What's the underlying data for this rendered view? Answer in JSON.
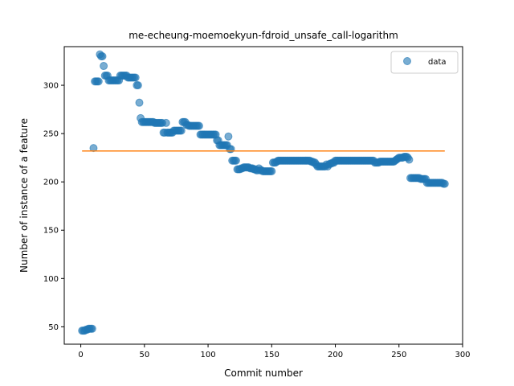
{
  "chart_data": {
    "type": "scatter",
    "title": "me-echeung-moemoekyun-fdroid_unsafe_call-logarithm",
    "xlabel": "Commit number",
    "ylabel": "Number of instance of a feature",
    "xlim": [
      -13,
      300
    ],
    "ylim": [
      32,
      340
    ],
    "xticks": [
      0,
      50,
      100,
      150,
      200,
      250,
      300
    ],
    "yticks": [
      50,
      100,
      150,
      200,
      250,
      300
    ],
    "grid": false,
    "legend_position": "top-right",
    "series": [
      {
        "name": "data",
        "kind": "scatter",
        "color": "#1f77b4",
        "opacity": 0.6,
        "points": [
          [
            1,
            46
          ],
          [
            2,
            46
          ],
          [
            3,
            46
          ],
          [
            4,
            47
          ],
          [
            5,
            47
          ],
          [
            6,
            48
          ],
          [
            7,
            48
          ],
          [
            8,
            48
          ],
          [
            9,
            48
          ],
          [
            10,
            235
          ],
          [
            11,
            304
          ],
          [
            12,
            304
          ],
          [
            13,
            304
          ],
          [
            14,
            304
          ],
          [
            15,
            332
          ],
          [
            16,
            330
          ],
          [
            17,
            330
          ],
          [
            18,
            320
          ],
          [
            19,
            310
          ],
          [
            20,
            310
          ],
          [
            21,
            310
          ],
          [
            22,
            305
          ],
          [
            23,
            305
          ],
          [
            24,
            305
          ],
          [
            25,
            305
          ],
          [
            26,
            305
          ],
          [
            27,
            305
          ],
          [
            28,
            305
          ],
          [
            29,
            305
          ],
          [
            30,
            305
          ],
          [
            31,
            310
          ],
          [
            32,
            310
          ],
          [
            33,
            310
          ],
          [
            34,
            310
          ],
          [
            35,
            310
          ],
          [
            36,
            310
          ],
          [
            37,
            308
          ],
          [
            38,
            308
          ],
          [
            39,
            308
          ],
          [
            40,
            308
          ],
          [
            41,
            308
          ],
          [
            42,
            308
          ],
          [
            43,
            308
          ],
          [
            44,
            300
          ],
          [
            45,
            300
          ],
          [
            46,
            282
          ],
          [
            47,
            266
          ],
          [
            48,
            262
          ],
          [
            49,
            262
          ],
          [
            50,
            262
          ],
          [
            51,
            262
          ],
          [
            52,
            262
          ],
          [
            53,
            262
          ],
          [
            54,
            262
          ],
          [
            55,
            262
          ],
          [
            56,
            262
          ],
          [
            57,
            262
          ],
          [
            58,
            261
          ],
          [
            59,
            261
          ],
          [
            60,
            261
          ],
          [
            61,
            261
          ],
          [
            62,
            261
          ],
          [
            63,
            261
          ],
          [
            64,
            261
          ],
          [
            65,
            251
          ],
          [
            66,
            251
          ],
          [
            67,
            261
          ],
          [
            68,
            251
          ],
          [
            69,
            251
          ],
          [
            70,
            251
          ],
          [
            71,
            251
          ],
          [
            72,
            251
          ],
          [
            73,
            253
          ],
          [
            74,
            253
          ],
          [
            75,
            253
          ],
          [
            76,
            253
          ],
          [
            77,
            253
          ],
          [
            78,
            253
          ],
          [
            79,
            253
          ],
          [
            80,
            262
          ],
          [
            81,
            262
          ],
          [
            82,
            262
          ],
          [
            83,
            259
          ],
          [
            84,
            259
          ],
          [
            85,
            258
          ],
          [
            86,
            258
          ],
          [
            87,
            258
          ],
          [
            88,
            258
          ],
          [
            89,
            258
          ],
          [
            90,
            258
          ],
          [
            91,
            258
          ],
          [
            92,
            258
          ],
          [
            93,
            258
          ],
          [
            94,
            249
          ],
          [
            95,
            249
          ],
          [
            96,
            249
          ],
          [
            97,
            249
          ],
          [
            98,
            249
          ],
          [
            99,
            249
          ],
          [
            100,
            249
          ],
          [
            101,
            249
          ],
          [
            102,
            249
          ],
          [
            103,
            249
          ],
          [
            104,
            249
          ],
          [
            105,
            249
          ],
          [
            106,
            249
          ],
          [
            107,
            243
          ],
          [
            108,
            243
          ],
          [
            109,
            238
          ],
          [
            110,
            238
          ],
          [
            111,
            238
          ],
          [
            112,
            238
          ],
          [
            113,
            238
          ],
          [
            114,
            238
          ],
          [
            115,
            238
          ],
          [
            116,
            247
          ],
          [
            117,
            234
          ],
          [
            118,
            234
          ],
          [
            119,
            222
          ],
          [
            120,
            222
          ],
          [
            121,
            222
          ],
          [
            122,
            222
          ],
          [
            123,
            213
          ],
          [
            124,
            213
          ],
          [
            125,
            213
          ],
          [
            126,
            214
          ],
          [
            127,
            214
          ],
          [
            128,
            215
          ],
          [
            129,
            215
          ],
          [
            130,
            215
          ],
          [
            131,
            215
          ],
          [
            132,
            215
          ],
          [
            133,
            214
          ],
          [
            134,
            214
          ],
          [
            135,
            214
          ],
          [
            136,
            213
          ],
          [
            137,
            213
          ],
          [
            138,
            212
          ],
          [
            139,
            212
          ],
          [
            140,
            214
          ],
          [
            141,
            212
          ],
          [
            142,
            212
          ],
          [
            143,
            211
          ],
          [
            144,
            211
          ],
          [
            145,
            211
          ],
          [
            146,
            211
          ],
          [
            147,
            211
          ],
          [
            148,
            211
          ],
          [
            149,
            211
          ],
          [
            150,
            211
          ],
          [
            151,
            220
          ],
          [
            152,
            220
          ],
          [
            153,
            220
          ],
          [
            154,
            221
          ],
          [
            155,
            222
          ],
          [
            156,
            222
          ],
          [
            157,
            222
          ],
          [
            158,
            222
          ],
          [
            159,
            222
          ],
          [
            160,
            222
          ],
          [
            161,
            222
          ],
          [
            162,
            222
          ],
          [
            163,
            222
          ],
          [
            164,
            222
          ],
          [
            165,
            222
          ],
          [
            166,
            222
          ],
          [
            167,
            222
          ],
          [
            168,
            222
          ],
          [
            169,
            222
          ],
          [
            170,
            222
          ],
          [
            171,
            222
          ],
          [
            172,
            222
          ],
          [
            173,
            222
          ],
          [
            174,
            222
          ],
          [
            175,
            222
          ],
          [
            176,
            222
          ],
          [
            177,
            222
          ],
          [
            178,
            222
          ],
          [
            179,
            222
          ],
          [
            180,
            222
          ],
          [
            181,
            221
          ],
          [
            182,
            221
          ],
          [
            183,
            220
          ],
          [
            184,
            220
          ],
          [
            185,
            218
          ],
          [
            186,
            216
          ],
          [
            187,
            216
          ],
          [
            188,
            216
          ],
          [
            189,
            216
          ],
          [
            190,
            216
          ],
          [
            191,
            216
          ],
          [
            192,
            216
          ],
          [
            193,
            218
          ],
          [
            194,
            216
          ],
          [
            195,
            218
          ],
          [
            196,
            219
          ],
          [
            197,
            219
          ],
          [
            198,
            220
          ],
          [
            199,
            220
          ],
          [
            200,
            222
          ],
          [
            201,
            222
          ],
          [
            202,
            222
          ],
          [
            203,
            222
          ],
          [
            204,
            222
          ],
          [
            205,
            222
          ],
          [
            206,
            222
          ],
          [
            207,
            222
          ],
          [
            208,
            222
          ],
          [
            209,
            222
          ],
          [
            210,
            222
          ],
          [
            211,
            222
          ],
          [
            212,
            222
          ],
          [
            213,
            222
          ],
          [
            214,
            222
          ],
          [
            215,
            222
          ],
          [
            216,
            222
          ],
          [
            217,
            222
          ],
          [
            218,
            222
          ],
          [
            219,
            222
          ],
          [
            220,
            222
          ],
          [
            221,
            222
          ],
          [
            222,
            222
          ],
          [
            223,
            222
          ],
          [
            224,
            222
          ],
          [
            225,
            222
          ],
          [
            226,
            222
          ],
          [
            227,
            222
          ],
          [
            228,
            222
          ],
          [
            229,
            222
          ],
          [
            230,
            222
          ],
          [
            231,
            220
          ],
          [
            232,
            220
          ],
          [
            233,
            220
          ],
          [
            234,
            220
          ],
          [
            235,
            221
          ],
          [
            236,
            221
          ],
          [
            237,
            221
          ],
          [
            238,
            221
          ],
          [
            239,
            221
          ],
          [
            240,
            221
          ],
          [
            241,
            221
          ],
          [
            242,
            221
          ],
          [
            243,
            221
          ],
          [
            244,
            221
          ],
          [
            245,
            221
          ],
          [
            246,
            221
          ],
          [
            247,
            222
          ],
          [
            248,
            223
          ],
          [
            249,
            224
          ],
          [
            250,
            225
          ],
          [
            251,
            225
          ],
          [
            252,
            225
          ],
          [
            253,
            225
          ],
          [
            254,
            226
          ],
          [
            255,
            226
          ],
          [
            256,
            226
          ],
          [
            257,
            225
          ],
          [
            258,
            223
          ],
          [
            259,
            204
          ],
          [
            260,
            204
          ],
          [
            261,
            204
          ],
          [
            262,
            204
          ],
          [
            263,
            204
          ],
          [
            264,
            204
          ],
          [
            265,
            204
          ],
          [
            266,
            204
          ],
          [
            267,
            203
          ],
          [
            268,
            203
          ],
          [
            269,
            203
          ],
          [
            270,
            203
          ],
          [
            271,
            203
          ],
          [
            272,
            199
          ],
          [
            273,
            199
          ],
          [
            274,
            199
          ],
          [
            275,
            199
          ],
          [
            276,
            199
          ],
          [
            277,
            199
          ],
          [
            278,
            199
          ],
          [
            279,
            199
          ],
          [
            280,
            199
          ],
          [
            281,
            199
          ],
          [
            282,
            199
          ],
          [
            283,
            199
          ],
          [
            284,
            199
          ],
          [
            285,
            198
          ],
          [
            286,
            198
          ]
        ]
      },
      {
        "name": "",
        "kind": "line",
        "color": "#ff7f0e",
        "points": [
          [
            1,
            232
          ],
          [
            286,
            232
          ]
        ]
      }
    ]
  }
}
